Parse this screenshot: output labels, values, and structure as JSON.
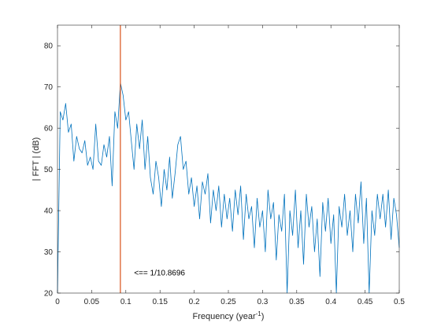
{
  "chart_data": {
    "type": "line",
    "xlabel_main": "Frequency (year",
    "xlabel_sup": "-1",
    "xlabel_close": ")",
    "ylabel": "| FFT | (dB)",
    "xlim": [
      0,
      0.5
    ],
    "ylim": [
      20,
      85
    ],
    "xticks": [
      0,
      0.05,
      0.1,
      0.15,
      0.2,
      0.25,
      0.3,
      0.35,
      0.4,
      0.45,
      0.5
    ],
    "xtick_labels": [
      "0",
      "0.05",
      "0.1",
      "0.15",
      "0.2",
      "0.25",
      "0.3",
      "0.35",
      "0.4",
      "0.45",
      "0.5"
    ],
    "yticks": [
      20,
      30,
      40,
      50,
      60,
      70,
      80
    ],
    "ytick_labels": [
      "20",
      "30",
      "40",
      "50",
      "60",
      "70",
      "80"
    ],
    "grid": false,
    "series_color": "#0072BD",
    "marker_color": "#D95319",
    "marker_x": 0.092,
    "annotation": {
      "text": "<== 1/10.8696",
      "x": 0.112,
      "y": 24.3
    },
    "series": [
      {
        "x": [
          0,
          0.004,
          0.008,
          0.012,
          0.016,
          0.02,
          0.024,
          0.028,
          0.032,
          0.036,
          0.04,
          0.044,
          0.048,
          0.052,
          0.056,
          0.06,
          0.064,
          0.068,
          0.072,
          0.076,
          0.08,
          0.084,
          0.088,
          0.092,
          0.096,
          0.1,
          0.104,
          0.108,
          0.112,
          0.116,
          0.12,
          0.124,
          0.128,
          0.132,
          0.136,
          0.14,
          0.144,
          0.148,
          0.152,
          0.156,
          0.16,
          0.164,
          0.168,
          0.172,
          0.176,
          0.18,
          0.184,
          0.188,
          0.192,
          0.196,
          0.2,
          0.204,
          0.208,
          0.212,
          0.216,
          0.22,
          0.224,
          0.228,
          0.232,
          0.236,
          0.24,
          0.244,
          0.248,
          0.252,
          0.256,
          0.26,
          0.264,
          0.268,
          0.272,
          0.276,
          0.28,
          0.284,
          0.288,
          0.292,
          0.296,
          0.3,
          0.304,
          0.308,
          0.312,
          0.316,
          0.32,
          0.324,
          0.328,
          0.332,
          0.336,
          0.34,
          0.344,
          0.348,
          0.352,
          0.356,
          0.36,
          0.364,
          0.368,
          0.372,
          0.376,
          0.38,
          0.384,
          0.388,
          0.392,
          0.396,
          0.4,
          0.404,
          0.408,
          0.412,
          0.416,
          0.42,
          0.424,
          0.428,
          0.432,
          0.436,
          0.44,
          0.444,
          0.448,
          0.452,
          0.456,
          0.46,
          0.464,
          0.468,
          0.472,
          0.476,
          0.48,
          0.484,
          0.488,
          0.492,
          0.496,
          0.5
        ],
        "values": [
          20,
          64,
          62,
          66,
          59,
          61,
          52,
          58,
          55,
          54,
          57,
          51,
          53,
          50,
          61,
          52,
          51,
          56,
          53,
          58,
          46,
          64,
          60,
          71,
          68,
          62,
          64,
          57,
          50,
          61,
          55,
          62,
          50,
          58,
          48,
          44,
          52,
          48,
          41,
          50,
          45,
          53,
          43,
          49,
          56,
          58,
          50,
          52,
          44,
          48,
          41,
          46,
          38,
          47,
          44,
          49,
          37,
          45,
          40,
          46,
          36,
          44,
          38,
          43,
          35,
          45,
          39,
          46,
          33,
          44,
          38,
          41,
          31,
          43,
          36,
          40,
          30,
          45,
          38,
          42,
          28,
          39,
          35,
          44,
          20,
          40,
          34,
          45,
          31,
          40,
          27,
          44,
          36,
          41,
          30,
          38,
          24,
          42,
          35,
          43,
          32,
          39,
          20,
          41,
          36,
          44,
          34,
          40,
          30,
          44,
          37,
          47,
          32,
          43,
          20,
          40,
          34,
          44,
          38,
          44,
          36,
          45,
          33,
          43,
          39,
          31
        ]
      }
    ]
  }
}
